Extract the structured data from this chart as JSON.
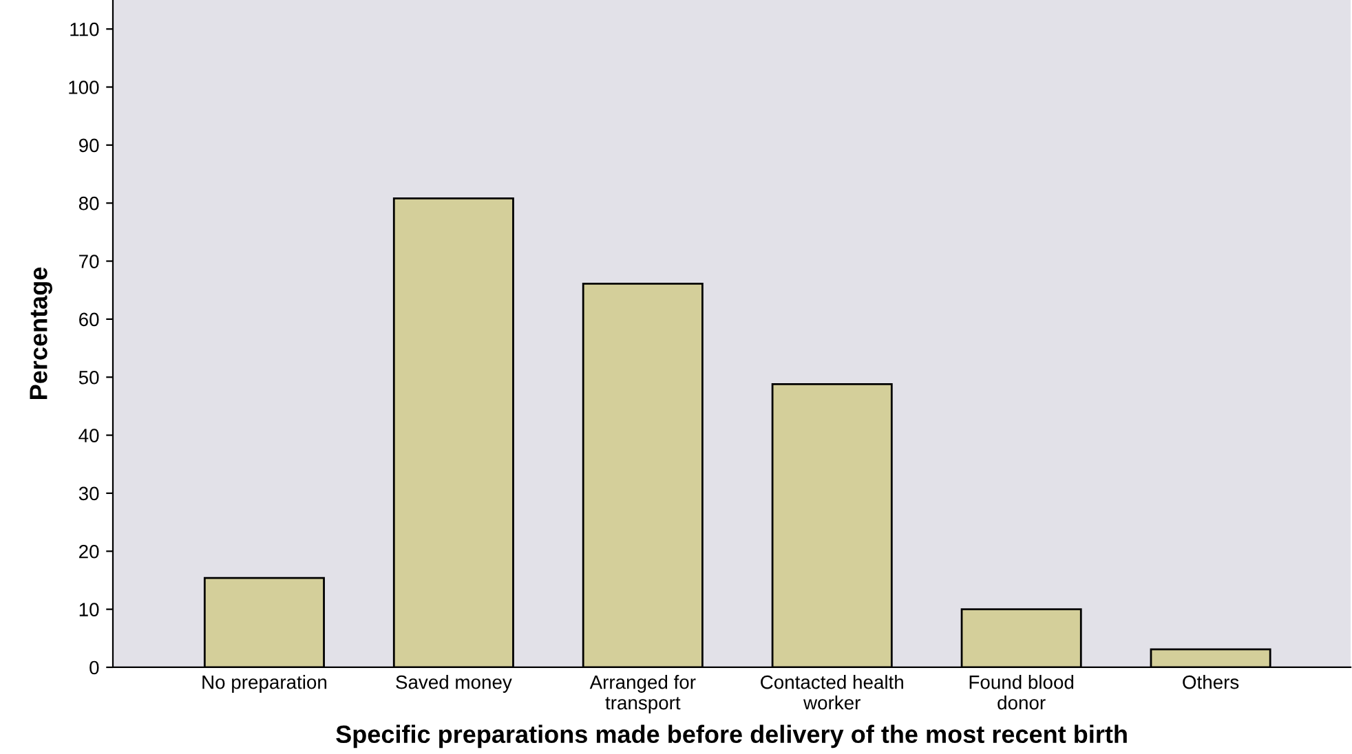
{
  "chart_data": {
    "type": "bar",
    "xlabel": "Specific preparations made before delivery of the most recent birth",
    "ylabel": "Percentage",
    "categories": [
      "No preparation",
      "Saved money",
      "Arranged for\ntransport",
      "Contacted health\nworker",
      "Found blood\ndonor",
      "Others"
    ],
    "values": [
      15.4,
      80.8,
      66.1,
      48.8,
      10.0,
      3.1
    ],
    "color": "#d4cf9a",
    "ylim": [
      0,
      115
    ],
    "yticks": [
      0,
      10,
      20,
      30,
      40,
      50,
      60,
      70,
      80,
      90,
      100,
      110
    ],
    "grid": false
  }
}
